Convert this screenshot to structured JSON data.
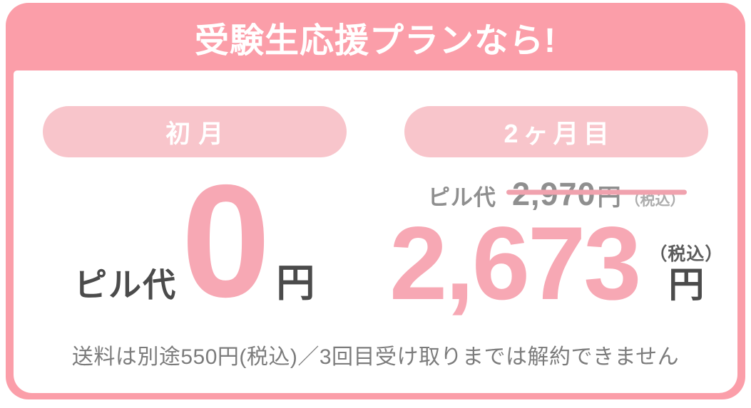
{
  "header": {
    "title": "受験生応援プランなら!"
  },
  "plan": {
    "first_month": {
      "badge": "初月",
      "label": "ピル代",
      "price": "0",
      "unit": "円"
    },
    "second_month": {
      "badge": "2ヶ月目",
      "label": "ピル代",
      "original_price": "2,970",
      "original_unit": "円",
      "original_tax_note": "（税込）",
      "price": "2,673",
      "tax_note": "（税込）",
      "unit": "円"
    }
  },
  "note": "送料は別途550円(税込)／3回目受け取りまでは解約できません",
  "colors": {
    "frame_pink": "#FB9EA9",
    "badge_pink": "#F8C5CB",
    "accent_pink": "#F7A8B4",
    "strike_pink": "#F0A2AE",
    "dark_text": "#4B4B4B",
    "muted_gray": "#8F8F8F",
    "light_gray": "#ACACAC",
    "tax_gray": "#5C5C5C",
    "note_gray": "#7C7C7C",
    "card_bg": "#FFFFFF"
  }
}
